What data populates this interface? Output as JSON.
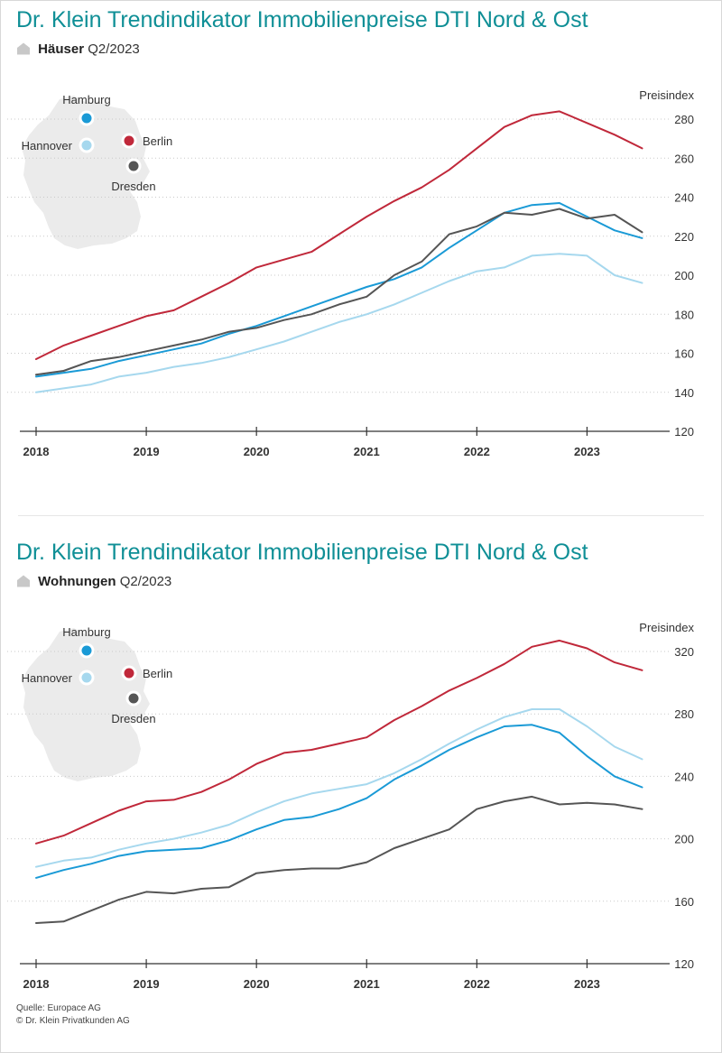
{
  "panels": [
    {
      "title": "Dr. Klein Trendindikator Immobilienpreise DTI Nord & Ost",
      "category": "Häuser",
      "period": "Q2/2023",
      "map": {
        "cities": [
          {
            "name": "Hamburg",
            "color": "#1a9ad6"
          },
          {
            "name": "Hannover",
            "color": "#a6d8ee"
          },
          {
            "name": "Berlin",
            "color": "#c0283a"
          },
          {
            "name": "Dresden",
            "color": "#555555"
          }
        ]
      }
    },
    {
      "title": "Dr. Klein Trendindikator Immobilienpreise DTI Nord & Ost",
      "category": "Wohnungen",
      "period": "Q2/2023",
      "map": {
        "cities": [
          {
            "name": "Hamburg",
            "color": "#1a9ad6"
          },
          {
            "name": "Hannover",
            "color": "#a6d8ee"
          },
          {
            "name": "Berlin",
            "color": "#c0283a"
          },
          {
            "name": "Dresden",
            "color": "#555555"
          }
        ]
      }
    }
  ],
  "chart_data": [
    {
      "type": "line",
      "title": "Dr. Klein Trendindikator Immobilienpreise DTI Nord & Ost",
      "subtitle": "Häuser Q2/2023",
      "ylabel": "Preisindex",
      "xlabel": "",
      "ylim": [
        120,
        280
      ],
      "yticks": [
        120,
        140,
        160,
        180,
        200,
        220,
        240,
        260,
        280
      ],
      "xlim": [
        2018,
        2023.75
      ],
      "xticks": [
        "2018",
        "2019",
        "2020",
        "2021",
        "2022",
        "2023"
      ],
      "grid": "horizontal dotted",
      "x": [
        2018,
        2018.25,
        2018.5,
        2018.75,
        2019,
        2019.25,
        2019.5,
        2019.75,
        2020,
        2020.25,
        2020.5,
        2020.75,
        2021,
        2021.25,
        2021.5,
        2021.75,
        2022,
        2022.25,
        2022.5,
        2022.75,
        2023,
        2023.25,
        2023.5
      ],
      "series": [
        {
          "name": "Berlin",
          "color": "#c0283a",
          "values": [
            157,
            164,
            169,
            174,
            179,
            182,
            189,
            196,
            204,
            208,
            212,
            221,
            230,
            238,
            245,
            254,
            265,
            276,
            282,
            284,
            278,
            272,
            265
          ]
        },
        {
          "name": "Hamburg",
          "color": "#1a9ad6",
          "values": [
            148,
            150,
            152,
            156,
            159,
            162,
            165,
            170,
            174,
            179,
            184,
            189,
            194,
            198,
            204,
            214,
            223,
            232,
            236,
            237,
            230,
            223,
            219
          ]
        },
        {
          "name": "Dresden",
          "color": "#555555",
          "values": [
            149,
            151,
            156,
            158,
            161,
            164,
            167,
            171,
            173,
            177,
            180,
            185,
            189,
            200,
            207,
            221,
            225,
            232,
            231,
            234,
            229,
            231,
            222
          ]
        },
        {
          "name": "Hannover",
          "color": "#a6d8ee",
          "values": [
            140,
            142,
            144,
            148,
            150,
            153,
            155,
            158,
            162,
            166,
            171,
            176,
            180,
            185,
            191,
            197,
            202,
            204,
            210,
            211,
            210,
            200,
            196
          ]
        }
      ]
    },
    {
      "type": "line",
      "title": "Dr. Klein Trendindikator Immobilienpreise DTI Nord & Ost",
      "subtitle": "Wohnungen Q2/2023",
      "ylabel": "Preisindex",
      "xlabel": "",
      "ylim": [
        120,
        320
      ],
      "yticks": [
        120,
        160,
        200,
        240,
        280,
        320
      ],
      "xlim": [
        2018,
        2023.75
      ],
      "xticks": [
        "2018",
        "2019",
        "2020",
        "2021",
        "2022",
        "2023"
      ],
      "grid": "horizontal dotted",
      "x": [
        2018,
        2018.25,
        2018.5,
        2018.75,
        2019,
        2019.25,
        2019.5,
        2019.75,
        2020,
        2020.25,
        2020.5,
        2020.75,
        2021,
        2021.25,
        2021.5,
        2021.75,
        2022,
        2022.25,
        2022.5,
        2022.75,
        2023,
        2023.25,
        2023.5
      ],
      "series": [
        {
          "name": "Berlin",
          "color": "#c0283a",
          "values": [
            197,
            202,
            210,
            218,
            224,
            225,
            230,
            238,
            248,
            255,
            257,
            261,
            265,
            276,
            285,
            295,
            303,
            312,
            323,
            327,
            322,
            313,
            308
          ]
        },
        {
          "name": "Hannover",
          "color": "#a6d8ee",
          "values": [
            182,
            186,
            188,
            193,
            197,
            200,
            204,
            209,
            217,
            224,
            229,
            232,
            235,
            242,
            251,
            261,
            270,
            278,
            283,
            283,
            272,
            259,
            251
          ]
        },
        {
          "name": "Hamburg",
          "color": "#1a9ad6",
          "values": [
            175,
            180,
            184,
            189,
            192,
            193,
            194,
            199,
            206,
            212,
            214,
            219,
            226,
            238,
            247,
            257,
            265,
            272,
            273,
            268,
            253,
            240,
            233
          ]
        },
        {
          "name": "Dresden",
          "color": "#555555",
          "values": [
            146,
            147,
            154,
            161,
            166,
            165,
            168,
            169,
            178,
            180,
            181,
            181,
            185,
            194,
            200,
            206,
            219,
            224,
            227,
            222,
            223,
            222,
            219
          ]
        }
      ]
    }
  ],
  "footer": {
    "source": "Quelle: Europace AG",
    "copyright": "© Dr. Klein Privatkunden AG"
  }
}
